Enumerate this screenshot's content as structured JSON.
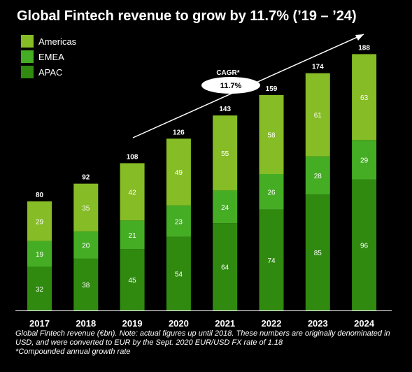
{
  "chart_data": {
    "type": "bar",
    "stacked": true,
    "title": "Global Fintech revenue to grow by 11.7% (’19 – ’24)",
    "categories": [
      "2017",
      "2018",
      "2019",
      "2020",
      "2021",
      "2022",
      "2023",
      "2024"
    ],
    "series": [
      {
        "name": "APAC",
        "values": [
          32,
          38,
          45,
          54,
          64,
          74,
          85,
          96
        ],
        "color": "#2f8a0f"
      },
      {
        "name": "EMEA",
        "values": [
          19,
          20,
          21,
          23,
          24,
          26,
          28,
          29
        ],
        "color": "#45ad24"
      },
      {
        "name": "Americas",
        "values": [
          29,
          35,
          42,
          49,
          55,
          58,
          61,
          63
        ],
        "color": "#86bc25"
      }
    ],
    "totals": [
      80,
      92,
      108,
      126,
      143,
      159,
      174,
      188
    ],
    "legend_order": [
      "Americas",
      "EMEA",
      "APAC"
    ],
    "legend_position": "top-left",
    "annotation": {
      "label": "CAGR*",
      "value": "11.7%"
    },
    "grid": false,
    "ylim": [
      0,
      190
    ]
  },
  "footnotes": [
    "Global Fintech revenue (€bn). Note: actual figures up until 2018. These numbers are originally denominated in USD, and were converted to EUR by the Sept. 2020 EUR/USD FX rate of 1.18",
    "*Compounded annual growth rate"
  ],
  "colors": {
    "background": "#000000",
    "text": "#ffffff",
    "axis": "#ffffff"
  }
}
